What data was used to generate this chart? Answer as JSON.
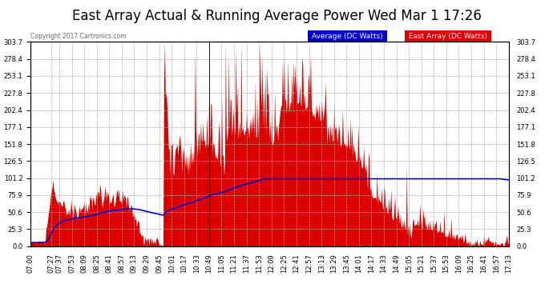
{
  "title": "East Array Actual & Running Average Power Wed Mar 1 17:26",
  "copyright": "Copyright 2017 Cartronics.com",
  "ymax": 303.7,
  "yticks": [
    0.0,
    25.3,
    50.6,
    75.9,
    101.2,
    126.5,
    151.8,
    177.1,
    202.4,
    227.8,
    253.1,
    278.4,
    303.7
  ],
  "legend_avg_label": "Average (DC Watts)",
  "legend_east_label": "East Array (DC Watts)",
  "legend_avg_color": "#0000cc",
  "legend_east_color": "#dd0000",
  "background_color": "#ffffff",
  "plot_bg_color": "#ffffff",
  "grid_color": "#aaaaaa",
  "title_fontsize": 12,
  "tick_fontsize": 6,
  "time_labels": [
    "07:00",
    "07:27",
    "07:37",
    "07:53",
    "08:09",
    "08:25",
    "08:41",
    "08:57",
    "09:13",
    "09:29",
    "09:45",
    "10:01",
    "10:17",
    "10:33",
    "10:49",
    "11:05",
    "11:21",
    "11:37",
    "11:53",
    "12:09",
    "12:25",
    "12:41",
    "12:57",
    "13:13",
    "13:29",
    "13:45",
    "14:01",
    "14:17",
    "14:33",
    "14:49",
    "15:05",
    "15:21",
    "15:37",
    "15:53",
    "16:09",
    "16:25",
    "16:41",
    "16:57",
    "17:13"
  ]
}
